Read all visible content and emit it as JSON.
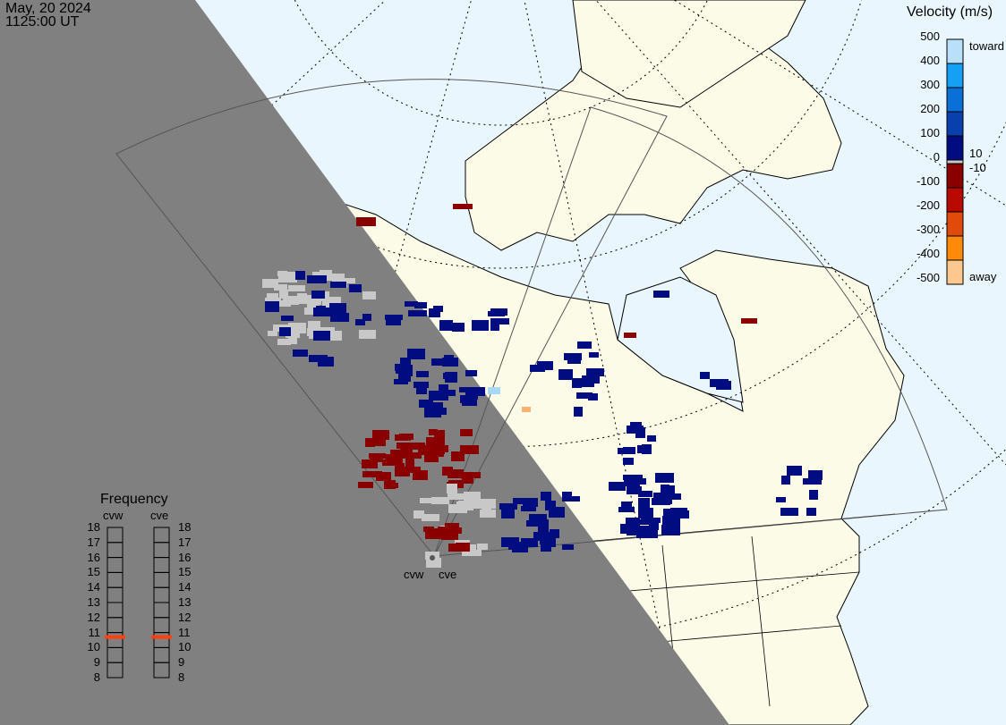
{
  "header": {
    "date": "May, 20 2024",
    "time": "1125:00 UT"
  },
  "velocity_legend": {
    "title": "Velocity (m/s)",
    "ticks": [
      "500",
      "400",
      "300",
      "200",
      "100",
      "0",
      "-100",
      "-200",
      "-300",
      "-400",
      "-500"
    ],
    "toward_label": "toward",
    "away_label": "away",
    "pos_threshold": "10",
    "neg_threshold": "-10",
    "colors": [
      "#b8e0fb",
      "#16a0f5",
      "#0a6fd6",
      "#0a3fae",
      "#000c80",
      "#c8c8c8",
      "#8a0000",
      "#b80a00",
      "#e04a0a",
      "#ff8a0a",
      "#fdc890"
    ]
  },
  "frequency_panel": {
    "title": "Frequency",
    "radars": [
      {
        "name": "cvw",
        "value_mhz": 10.7
      },
      {
        "name": "cve",
        "value_mhz": 10.7
      }
    ],
    "ticks": [
      "18",
      "17",
      "16",
      "15",
      "14",
      "13",
      "12",
      "11",
      "10",
      "9",
      "8"
    ],
    "range": [
      8,
      18
    ],
    "marker_color": "#ff4010"
  },
  "radar_labels": [
    "cvw",
    "cve"
  ],
  "map": {
    "ocean_color": "#eaf6fd",
    "land_color": "#fbfbe8",
    "night_color": "#808080"
  }
}
